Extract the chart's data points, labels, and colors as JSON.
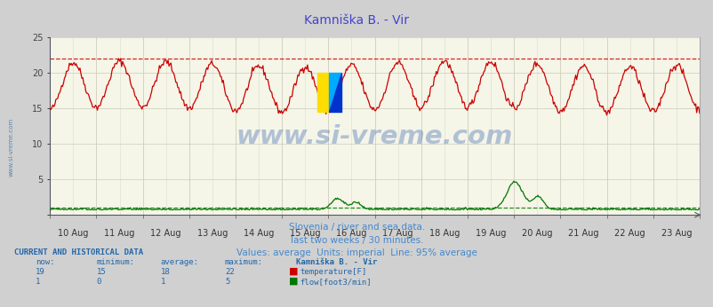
{
  "title": "Kamniška B. - Vir",
  "subtitle_lines": [
    "Slovenia / river and sea data.",
    "last two weeks / 30 minutes.",
    "Values: average  Units: imperial  Line: 95% average"
  ],
  "x_labels": [
    "10 Aug",
    "11 Aug",
    "12 Aug",
    "13 Aug",
    "14 Aug",
    "15 Aug",
    "16 Aug",
    "17 Aug",
    "18 Aug",
    "19 Aug",
    "20 Aug",
    "21 Aug",
    "22 Aug",
    "23 Aug"
  ],
  "ylim": [
    0,
    25
  ],
  "temp_color": "#cc0000",
  "flow_color": "#007700",
  "temp_avg_line": 22,
  "flow_avg_line": 1,
  "title_color": "#4444cc",
  "subtitle_color": "#4488cc",
  "text_color": "#2266aa",
  "watermark": "www.si-vreme.com",
  "current_data": {
    "headers": [
      "now:",
      "minimum:",
      "average:",
      "maximum:",
      "Kamniška B. - Vir"
    ],
    "temp_row": [
      "19",
      "15",
      "18",
      "22",
      "temperature[F]"
    ],
    "flow_row": [
      "1",
      "0",
      "1",
      "5",
      "flow[foot3/min]"
    ]
  }
}
